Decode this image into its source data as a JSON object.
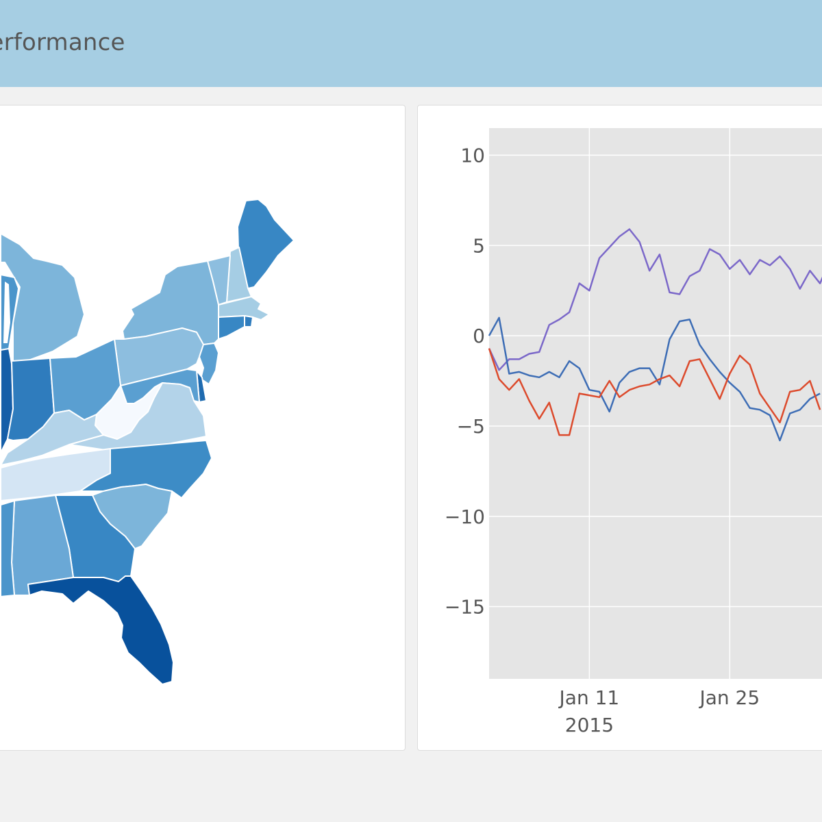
{
  "header": {
    "title": "Performance"
  },
  "colors": {
    "header_bg": "#a6cee3",
    "plot_bg": "#e5e5e5",
    "series": [
      "#7b68c9",
      "#3d6db5",
      "#dc4a2c"
    ]
  },
  "map": {
    "states": [
      {
        "name": "Maine",
        "color": "#3887c4"
      },
      {
        "name": "New Hampshire",
        "color": "#a5cde4"
      },
      {
        "name": "Vermont",
        "color": "#8dbedf"
      },
      {
        "name": "Massachusetts",
        "color": "#a5cde4"
      },
      {
        "name": "Rhode Island",
        "color": "#2f7cbd"
      },
      {
        "name": "Connecticut",
        "color": "#3887c4"
      },
      {
        "name": "New York",
        "color": "#7db5da"
      },
      {
        "name": "New Jersey",
        "color": "#5a9fd1"
      },
      {
        "name": "Pennsylvania",
        "color": "#8dbedf"
      },
      {
        "name": "Delaware",
        "color": "#1f6bb0"
      },
      {
        "name": "Maryland",
        "color": "#5a9fd1"
      },
      {
        "name": "Michigan",
        "color": "#7db5da"
      },
      {
        "name": "Wisconsin",
        "color": "#4b95cb"
      },
      {
        "name": "Illinois",
        "color": "#155ea8"
      },
      {
        "name": "Indiana",
        "color": "#2f7cbd"
      },
      {
        "name": "Ohio",
        "color": "#5a9fd1"
      },
      {
        "name": "West Virginia",
        "color": "#f5f9fe"
      },
      {
        "name": "Virginia",
        "color": "#b3d3e9"
      },
      {
        "name": "Kentucky",
        "color": "#b3d3e9"
      },
      {
        "name": "Tennessee",
        "color": "#d4e5f4"
      },
      {
        "name": "North Carolina",
        "color": "#3d8cc6"
      },
      {
        "name": "South Carolina",
        "color": "#7db5da"
      },
      {
        "name": "Georgia",
        "color": "#3887c4"
      },
      {
        "name": "Alabama",
        "color": "#6aa8d6"
      },
      {
        "name": "Mississippi",
        "color": "#4b95cb"
      },
      {
        "name": "Florida",
        "color": "#08519c"
      }
    ]
  },
  "chart_data": {
    "type": "line",
    "title": "",
    "xlabel": "",
    "ylabel": "",
    "ylim": [
      -19,
      11.5
    ],
    "yticks": [
      10,
      5,
      0,
      -5,
      -10,
      -15
    ],
    "ytick_labels": [
      "10",
      "5",
      "0",
      "−5",
      "−10",
      "−15"
    ],
    "xlim": [
      "2015-01-01",
      "2015-02-06"
    ],
    "xticks": [
      {
        "date": "2015-01-11",
        "label": "Jan 11",
        "sublabel": "2015"
      },
      {
        "date": "2015-01-25",
        "label": "Jan 25",
        "sublabel": ""
      }
    ],
    "x_start": "2015-01-01",
    "series": [
      {
        "name": "trace 0",
        "color": "#7b68c9",
        "values": [
          -0.7,
          -1.9,
          -1.3,
          -1.3,
          -1.0,
          -0.9,
          0.6,
          0.9,
          1.3,
          2.9,
          2.5,
          4.3,
          4.9,
          5.5,
          5.9,
          5.2,
          3.6,
          4.5,
          2.4,
          2.3,
          3.3,
          3.6,
          4.8,
          4.5,
          3.7,
          4.2,
          3.4,
          4.2,
          3.9,
          4.4,
          3.7,
          2.6,
          3.6,
          2.9,
          4.2,
          4.8
        ]
      },
      {
        "name": "trace 1",
        "color": "#3d6db5",
        "values": [
          0.0,
          1.0,
          -2.1,
          -2.0,
          -2.2,
          -2.3,
          -2.0,
          -2.3,
          -1.4,
          -1.8,
          -3.0,
          -3.1,
          -4.2,
          -2.6,
          -2.0,
          -1.8,
          -1.8,
          -2.7,
          -0.2,
          0.8,
          0.9,
          -0.5,
          -1.3,
          -2.0,
          -2.6,
          -3.1,
          -4.0,
          -4.1,
          -4.4,
          -5.8,
          -4.3,
          -4.1,
          -3.5,
          -3.2
        ]
      },
      {
        "name": "trace 2",
        "color": "#dc4a2c",
        "values": [
          -0.7,
          -2.4,
          -3.0,
          -2.4,
          -3.6,
          -4.6,
          -3.7,
          -5.5,
          -5.5,
          -3.2,
          -3.3,
          -3.4,
          -2.5,
          -3.4,
          -3.0,
          -2.8,
          -2.7,
          -2.4,
          -2.2,
          -2.8,
          -1.4,
          -1.3,
          -2.4,
          -3.5,
          -2.1,
          -1.1,
          -1.6,
          -3.2,
          -4.0,
          -4.8,
          -3.1,
          -3.0,
          -2.5,
          -4.1
        ]
      }
    ]
  }
}
